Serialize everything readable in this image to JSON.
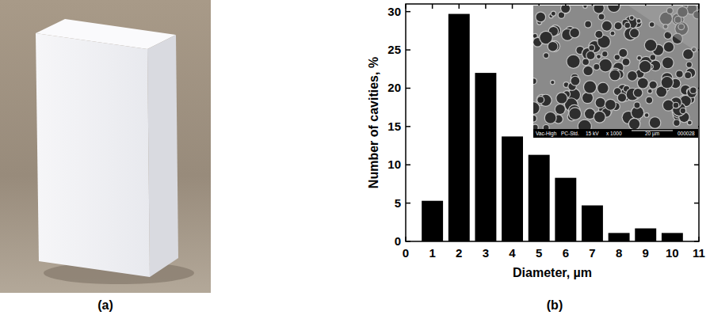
{
  "chart_data": {
    "type": "bar",
    "x_label": "Diameter, µm",
    "y_label": "Number of cavities, %",
    "x": [
      1,
      2,
      3,
      4,
      5,
      6,
      7,
      8,
      9,
      10
    ],
    "values": [
      5.3,
      29.7,
      22.0,
      13.7,
      11.3,
      8.3,
      4.7,
      1.1,
      1.7,
      1.1
    ],
    "color": "#000000",
    "xlim": [
      0,
      11
    ],
    "xticks": [
      0,
      1,
      2,
      3,
      4,
      5,
      6,
      7,
      8,
      9,
      10,
      11
    ],
    "ylim": [
      0,
      31
    ],
    "yticks": [
      0,
      5,
      10,
      15,
      20,
      25,
      30
    ],
    "grid": false
  },
  "panels": {
    "a": "(a)",
    "b": "(b)"
  },
  "inset": {
    "caption": [
      "Vac-High",
      "PC-Std.",
      "15 kV",
      "x 1000",
      "20 µm",
      "000028"
    ]
  }
}
